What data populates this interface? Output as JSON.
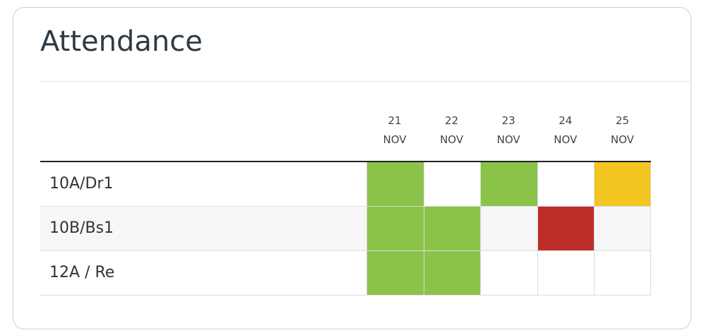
{
  "title": "Attendance",
  "columns": [
    {
      "day": "21",
      "month": "NOV"
    },
    {
      "day": "22",
      "month": "NOV"
    },
    {
      "day": "23",
      "month": "NOV"
    },
    {
      "day": "24",
      "month": "NOV"
    },
    {
      "day": "25",
      "month": "NOV"
    }
  ],
  "rows": [
    {
      "label": "10A/Dr1",
      "cells": [
        "#8bc34a",
        null,
        "#8bc34a",
        null,
        "#f2c521"
      ]
    },
    {
      "label": "10B/Bs1",
      "cells": [
        "#8bc34a",
        "#8bc34a",
        null,
        "#bd2e2b",
        null
      ]
    },
    {
      "label": "12A / Re",
      "cells": [
        "#8bc34a",
        "#8bc34a",
        null,
        null,
        null
      ]
    }
  ]
}
